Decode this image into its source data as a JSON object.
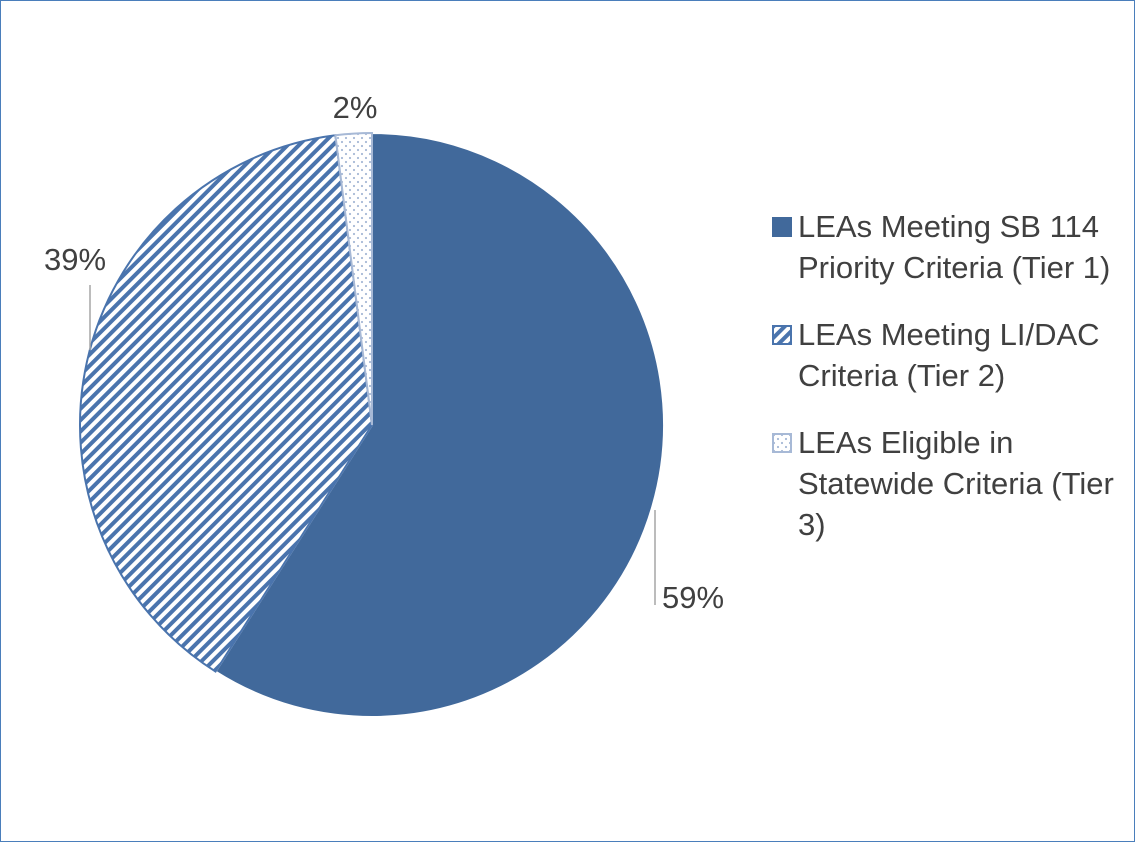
{
  "chart_data": {
    "type": "pie",
    "categories": [
      "LEAs Meeting SB 114 Priority Criteria (Tier 1)",
      "LEAs Meeting LI/DAC Criteria (Tier 2)",
      "LEAs Eligible in Statewide Criteria (Tier 3)"
    ],
    "values": [
      59,
      39,
      2
    ],
    "value_labels": [
      "59%",
      "39%",
      "2%"
    ],
    "colors": [
      "#41699b",
      "#4a74ad",
      "#a7b9d6"
    ],
    "legend": "right"
  }
}
